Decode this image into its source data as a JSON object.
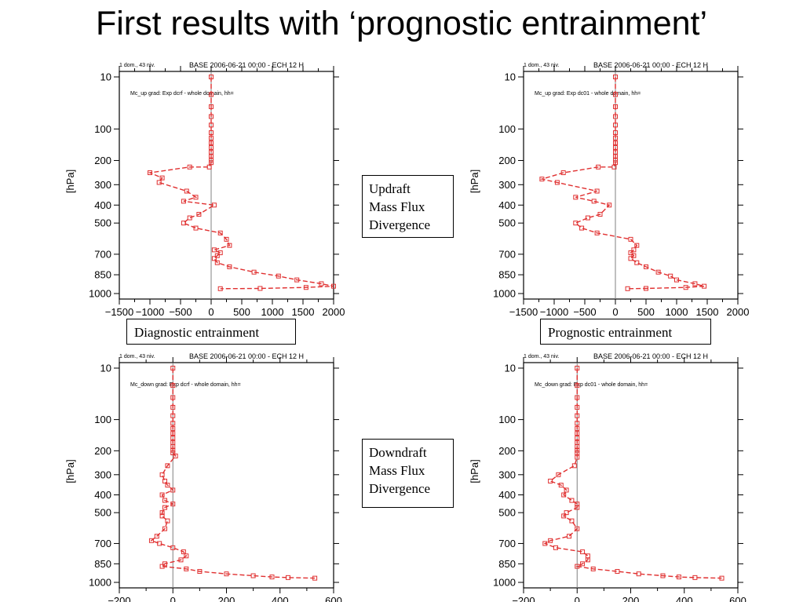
{
  "slide": {
    "title": "First results with ‘prognostic entrainment’"
  },
  "labels": {
    "updraft": [
      "Updraft",
      "Mass Flux",
      "Divergence"
    ],
    "downdraft": [
      "Downdraft",
      "Mass Flux",
      "Divergence"
    ],
    "diagnostic": "Diagnostic entrainment",
    "prognostic": "Prognostic entrainment"
  },
  "colors": {
    "series": "#e03030",
    "axis": "#000000",
    "zero_line": "#808080"
  },
  "chart_data": [
    {
      "type": "line",
      "header_left": "1 dom., 43 niv.",
      "header_title": "BASE 2006-06-21 00:00 - ECH 12 H",
      "subtitle": "Mc_up grad: Exp dcrf - whole domain, hh=",
      "xlabel": "",
      "ylabel": "[hPa]",
      "xlim": [
        -1500,
        2000
      ],
      "xticks": [
        -1500,
        -1000,
        -500,
        0,
        500,
        1000,
        1500,
        2000
      ],
      "xtick_labels": [
        "−1500",
        "−1000",
        "−500",
        "0",
        "500",
        "1000",
        "1500",
        "2000"
      ],
      "ylim": [
        0,
        1000
      ],
      "yticks": [
        10,
        100,
        200,
        300,
        400,
        500,
        700,
        850,
        1000
      ],
      "series": [
        {
          "x": [
            0,
            0,
            0,
            0,
            0,
            0,
            0,
            0,
            0,
            0,
            0,
            0,
            0,
            -30,
            -350,
            -1000,
            -800,
            -850,
            -400,
            -250,
            -450,
            50,
            -200,
            -350,
            -450,
            -250,
            150,
            250,
            300,
            50,
            150,
            100,
            50,
            100,
            300,
            700,
            1100,
            1400,
            1800,
            2000,
            1550,
            800,
            150
          ],
          "y": [
            10,
            30,
            50,
            70,
            90,
            110,
            125,
            140,
            155,
            170,
            185,
            198,
            208,
            225,
            225,
            248,
            270,
            290,
            330,
            360,
            380,
            400,
            450,
            470,
            500,
            530,
            560,
            600,
            640,
            670,
            690,
            710,
            730,
            760,
            790,
            830,
            860,
            890,
            920,
            940,
            950,
            958,
            960
          ]
        }
      ]
    },
    {
      "type": "line",
      "header_left": "1 dom., 43 niv.",
      "header_title": "BASE 2006-06-21 00:00 - ECH 12 H",
      "subtitle": "Mc_up grad: Exp dc01 - whole domain, hh=",
      "xlabel": "",
      "ylabel": "[hPa]",
      "xlim": [
        -1500,
        2000
      ],
      "xticks": [
        -1500,
        -1000,
        -500,
        0,
        500,
        1000,
        1500,
        2000
      ],
      "xtick_labels": [
        "−1500",
        "−1000",
        "−500",
        "0",
        "500",
        "1000",
        "1500",
        "2000"
      ],
      "ylim": [
        0,
        1000
      ],
      "yticks": [
        10,
        100,
        200,
        300,
        400,
        500,
        700,
        850,
        1000
      ],
      "series": [
        {
          "x": [
            0,
            0,
            0,
            0,
            0,
            0,
            0,
            0,
            0,
            0,
            0,
            0,
            0,
            -20,
            -280,
            -850,
            -1200,
            -950,
            -300,
            -650,
            -350,
            -100,
            -250,
            -450,
            -650,
            -550,
            -300,
            250,
            350,
            300,
            250,
            300,
            250,
            350,
            500,
            700,
            900,
            1000,
            1300,
            1450,
            1150,
            500,
            200
          ],
          "y": [
            10,
            30,
            50,
            70,
            90,
            110,
            125,
            140,
            155,
            170,
            185,
            198,
            208,
            225,
            225,
            248,
            275,
            290,
            330,
            360,
            380,
            400,
            450,
            470,
            500,
            530,
            560,
            600,
            640,
            670,
            690,
            710,
            730,
            760,
            790,
            830,
            860,
            890,
            920,
            940,
            950,
            958,
            960
          ]
        }
      ]
    },
    {
      "type": "line",
      "header_left": "1 dom., 43 niv.",
      "header_title": "BASE 2006-06-21 00:00 - ECH 12 H",
      "subtitle": "Mc_down grad: Exp dcrf - whole domain, hh=",
      "xlabel": "",
      "ylabel": "[hPa]",
      "xlim": [
        -200,
        600
      ],
      "xticks": [
        -200,
        0,
        200,
        400,
        600
      ],
      "xtick_labels": [
        "−200",
        "0",
        "200",
        "400",
        "600"
      ],
      "ylim": [
        0,
        1000
      ],
      "yticks": [
        10,
        100,
        200,
        300,
        400,
        500,
        700,
        850,
        1000
      ],
      "series": [
        {
          "x": [
            0,
            0,
            0,
            0,
            0,
            0,
            0,
            0,
            0,
            0,
            0,
            0,
            0,
            10,
            -20,
            -40,
            -30,
            -20,
            0,
            -40,
            -30,
            0,
            -30,
            -40,
            -40,
            -20,
            -30,
            -60,
            -80,
            -50,
            0,
            40,
            50,
            30,
            -30,
            -40,
            50,
            100,
            200,
            300,
            370,
            430,
            530
          ],
          "y": [
            10,
            30,
            50,
            70,
            90,
            110,
            125,
            140,
            155,
            170,
            185,
            198,
            208,
            220,
            260,
            300,
            330,
            350,
            375,
            400,
            430,
            450,
            470,
            500,
            520,
            550,
            600,
            650,
            680,
            700,
            730,
            760,
            790,
            820,
            850,
            870,
            890,
            910,
            930,
            945,
            955,
            960,
            965
          ]
        }
      ]
    },
    {
      "type": "line",
      "header_left": "1 dom., 43 niv.",
      "header_title": "BASE 2006-06-21 00:00 - ECH 12 H",
      "subtitle": "Mc_down grad: Exp dc01 - whole domain, hh=",
      "xlabel": "",
      "ylabel": "[hPa]",
      "xlim": [
        -200,
        600
      ],
      "xticks": [
        -200,
        0,
        200,
        400,
        600
      ],
      "xtick_labels": [
        "−200",
        "0",
        "200",
        "400",
        "600"
      ],
      "ylim": [
        0,
        1000
      ],
      "yticks": [
        10,
        100,
        200,
        300,
        400,
        500,
        700,
        850,
        1000
      ],
      "series": [
        {
          "x": [
            0,
            0,
            0,
            0,
            0,
            0,
            0,
            0,
            0,
            0,
            0,
            0,
            0,
            0,
            -10,
            -70,
            -100,
            -60,
            -40,
            -50,
            -20,
            0,
            0,
            -40,
            -50,
            -20,
            0,
            -30,
            -100,
            -120,
            -80,
            20,
            40,
            40,
            20,
            0,
            60,
            150,
            230,
            320,
            380,
            440,
            540
          ],
          "y": [
            10,
            30,
            50,
            70,
            90,
            110,
            125,
            140,
            155,
            170,
            185,
            198,
            208,
            225,
            260,
            300,
            330,
            350,
            375,
            400,
            430,
            450,
            470,
            500,
            520,
            550,
            600,
            650,
            680,
            700,
            730,
            760,
            790,
            820,
            850,
            870,
            890,
            910,
            930,
            945,
            955,
            960,
            965
          ]
        }
      ]
    }
  ]
}
